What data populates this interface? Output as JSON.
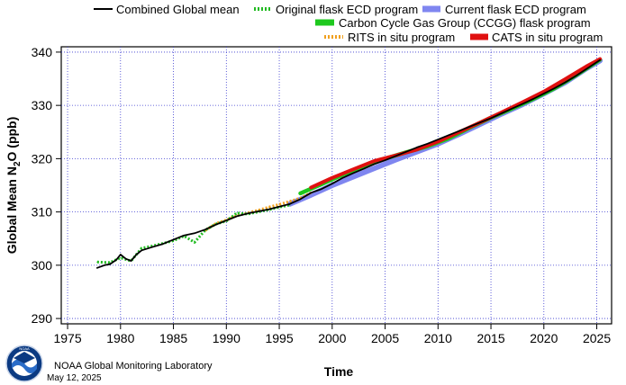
{
  "chart_data": {
    "type": "line",
    "title": "",
    "xlabel": "Time",
    "ylabel_parts": [
      "Global Mean N",
      "2",
      "O (ppb)"
    ],
    "xlim": [
      1974.4,
      2026.4
    ],
    "ylim": [
      289,
      341
    ],
    "xticks": [
      1975,
      1980,
      1985,
      1990,
      1995,
      2000,
      2005,
      2010,
      2015,
      2020,
      2025
    ],
    "yticks": [
      290,
      300,
      310,
      320,
      330,
      340
    ],
    "grid": true,
    "legend_position": "top-right",
    "legend": [
      {
        "label": "Combined Global mean",
        "color": "#000000",
        "style": "solid"
      },
      {
        "label": "Original flask ECD program",
        "color": "#22bb22",
        "style": "dotted"
      },
      {
        "label": "Current flask ECD program",
        "color": "#7f86f0",
        "style": "thick"
      },
      {
        "label": "Carbon Cycle Gas Group (CCGG) flask program",
        "color": "#1ec81e",
        "style": "thick"
      },
      {
        "label": "RITS in situ program",
        "color": "#f0a020",
        "style": "dotted"
      },
      {
        "label": "CATS in situ program",
        "color": "#e01010",
        "style": "thick"
      }
    ],
    "series": [
      {
        "name": "Current flask ECD program",
        "color": "#7f86f0",
        "x": [
          1996,
          1998,
          2000,
          2002,
          2004,
          2006,
          2008,
          2010,
          2012,
          2014,
          2016,
          2018,
          2020,
          2022,
          2024,
          2025.3
        ],
        "y": [
          311.5,
          313.2,
          315.0,
          316.6,
          318.2,
          319.8,
          321.3,
          322.8,
          324.6,
          326.5,
          328.4,
          330.2,
          332.2,
          334.3,
          336.9,
          338.4
        ]
      },
      {
        "name": "Carbon Cycle Gas Group (CCGG) flask program",
        "color": "#1ec81e",
        "x": [
          1997,
          1999,
          2001,
          2003,
          2005,
          2007,
          2009,
          2011,
          2013,
          2015,
          2017,
          2019,
          2021,
          2023,
          2025.3
        ],
        "y": [
          313.5,
          315.2,
          317.0,
          318.5,
          320.0,
          321.2,
          322.3,
          323.8,
          325.8,
          327.7,
          329.4,
          331.2,
          333.2,
          335.6,
          338.6
        ]
      },
      {
        "name": "CATS in situ program",
        "color": "#e01010",
        "x": [
          1998,
          2000,
          2002,
          2004,
          2006,
          2008,
          2010,
          2012,
          2014,
          2016,
          2018,
          2020,
          2022,
          2024,
          2025.3
        ],
        "y": [
          314.6,
          316.4,
          318.0,
          319.6,
          320.6,
          321.7,
          323.2,
          325.0,
          326.8,
          328.7,
          330.6,
          332.6,
          334.9,
          337.3,
          338.7
        ]
      },
      {
        "name": "RITS in situ program",
        "color": "#f0a020",
        "x": [
          1988,
          1989,
          1990,
          1991,
          1992,
          1993,
          1994,
          1995,
          1996,
          1997,
          1998
        ],
        "y": [
          306.5,
          307.8,
          308.5,
          309.3,
          309.8,
          310.3,
          310.9,
          311.4,
          312.0,
          312.6,
          313.6
        ]
      },
      {
        "name": "Original flask ECD program",
        "color": "#22bb22",
        "x": [
          1977.8,
          1979,
          1980,
          1981,
          1982,
          1983,
          1984,
          1985,
          1986,
          1987,
          1988,
          1989,
          1990,
          1991,
          1992,
          1993,
          1994,
          1995,
          1996
        ],
        "y": [
          300.6,
          300.5,
          301.4,
          300.8,
          303.2,
          303.6,
          304.1,
          304.6,
          305.5,
          304.3,
          306.6,
          307.7,
          308.3,
          309.8,
          309.6,
          310.0,
          310.4,
          310.9,
          311.3
        ]
      },
      {
        "name": "Combined Global mean",
        "color": "#000000",
        "x": [
          1977.8,
          1978.5,
          1979,
          1979.6,
          1980,
          1980.5,
          1981,
          1981.5,
          1982,
          1983,
          1984,
          1985,
          1986,
          1987,
          1988,
          1989,
          1990,
          1991,
          1992,
          1993,
          1994,
          1995,
          1996,
          1997,
          1998,
          1999,
          2000,
          2001,
          2002,
          2003,
          2004,
          2005,
          2006,
          2007,
          2008,
          2009,
          2010,
          2011,
          2012,
          2013,
          2014,
          2015,
          2016,
          2017,
          2018,
          2019,
          2020,
          2021,
          2022,
          2023,
          2024,
          2025.3
        ],
        "y": [
          299.5,
          300.0,
          300.2,
          301.0,
          302.0,
          301.2,
          300.8,
          302.0,
          302.8,
          303.4,
          304.0,
          304.8,
          305.6,
          306.0,
          306.7,
          307.6,
          308.4,
          309.2,
          309.7,
          310.1,
          310.5,
          311.0,
          311.5,
          312.4,
          313.6,
          314.3,
          315.3,
          316.4,
          317.3,
          318.1,
          319.0,
          319.7,
          320.5,
          321.3,
          322.1,
          322.8,
          323.6,
          324.4,
          325.2,
          326.0,
          326.8,
          327.6,
          328.5,
          329.4,
          330.3,
          331.2,
          332.2,
          333.2,
          334.3,
          335.5,
          336.8,
          338.5
        ]
      }
    ]
  },
  "footer": {
    "org": "NOAA Global Monitoring Laboratory",
    "date": "May 12, 2025",
    "logo_text": "NOAA"
  }
}
